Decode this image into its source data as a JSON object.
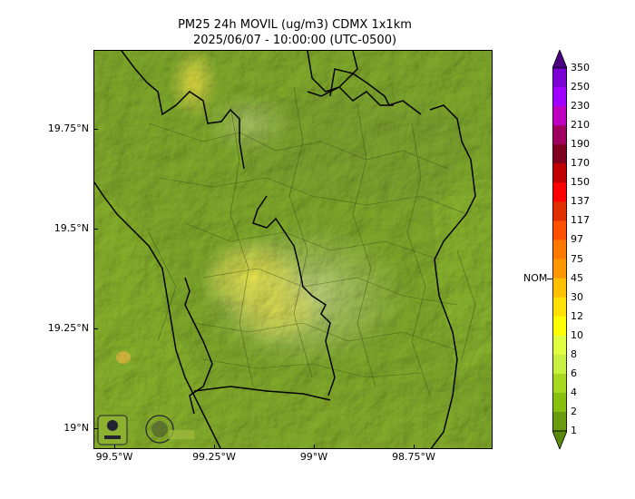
{
  "title": {
    "line1": "PM25 24h MOVIL (ug/m3) CDMX 1x1km",
    "line2": "2025/06/07 - 10:00:00 (UTC-0500)"
  },
  "axes": {
    "y_ticks": [
      "19.75°N",
      "19.5°N",
      "19.25°N",
      "19°N"
    ],
    "x_ticks": [
      "99.5°W",
      "99.25°W",
      "99°W",
      "98.75°W"
    ]
  },
  "colorbar": {
    "marker_label": "NOM",
    "labels": [
      "350",
      "250",
      "230",
      "210",
      "190",
      "170",
      "150",
      "137",
      "117",
      "97",
      "75",
      "45",
      "30",
      "12",
      "10",
      "8",
      "6",
      "4",
      "2",
      "1"
    ],
    "colors": [
      "#4b0082",
      "#7b00d4",
      "#a000ff",
      "#c000c0",
      "#a00060",
      "#800020",
      "#c00000",
      "#ff0000",
      "#e03000",
      "#ff5000",
      "#ff7800",
      "#ff9800",
      "#ffc000",
      "#ffe000",
      "#ffff00",
      "#e0ff40",
      "#c8f040",
      "#a8d820",
      "#88c010",
      "#6a9c10",
      "#5a8a0a"
    ]
  },
  "map": {
    "base_color": "#7ea82a",
    "hotspot_color": "#e6e04a",
    "logos": [
      "sedema-logo",
      "secretaria-logo"
    ]
  }
}
